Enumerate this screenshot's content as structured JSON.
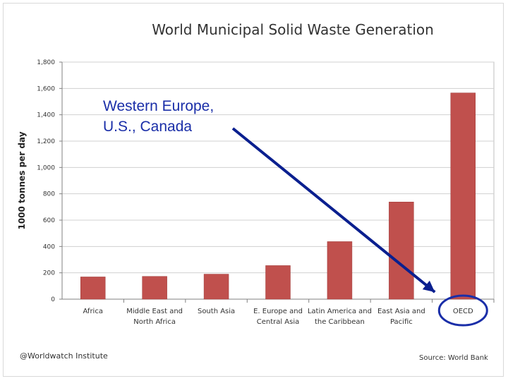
{
  "chart_data": {
    "type": "bar",
    "title": "World Municipal Solid Waste Generation",
    "xlabel": "",
    "ylabel": "1000 tonnes per day",
    "ylim": [
      0,
      1800
    ],
    "yticks": [
      0,
      200,
      400,
      600,
      800,
      1000,
      1200,
      1400,
      1600,
      1800
    ],
    "ytick_labels": [
      "0",
      "200",
      "400",
      "600",
      "800",
      "1,000",
      "1,200",
      "1,400",
      "1,600",
      "1,800"
    ],
    "grid": true,
    "categories": [
      [
        "Africa"
      ],
      [
        "Middle East and",
        "North Africa"
      ],
      [
        "South Asia"
      ],
      [
        "E. Europe and",
        "Central Asia"
      ],
      [
        "Latin America and",
        "the Caribbean"
      ],
      [
        "East Asia and",
        "Pacific"
      ],
      [
        "OECD"
      ]
    ],
    "values": [
      169,
      173,
      190,
      255,
      437,
      738,
      1566
    ],
    "bar_color": "#c0504d",
    "annotation": {
      "lines": [
        "Western Europe,",
        "U.S., Canada"
      ],
      "points_to": "OECD",
      "color": "#1a2ea8"
    }
  },
  "credit": "@Worldwatch Institute",
  "source": "Source: World Bank"
}
